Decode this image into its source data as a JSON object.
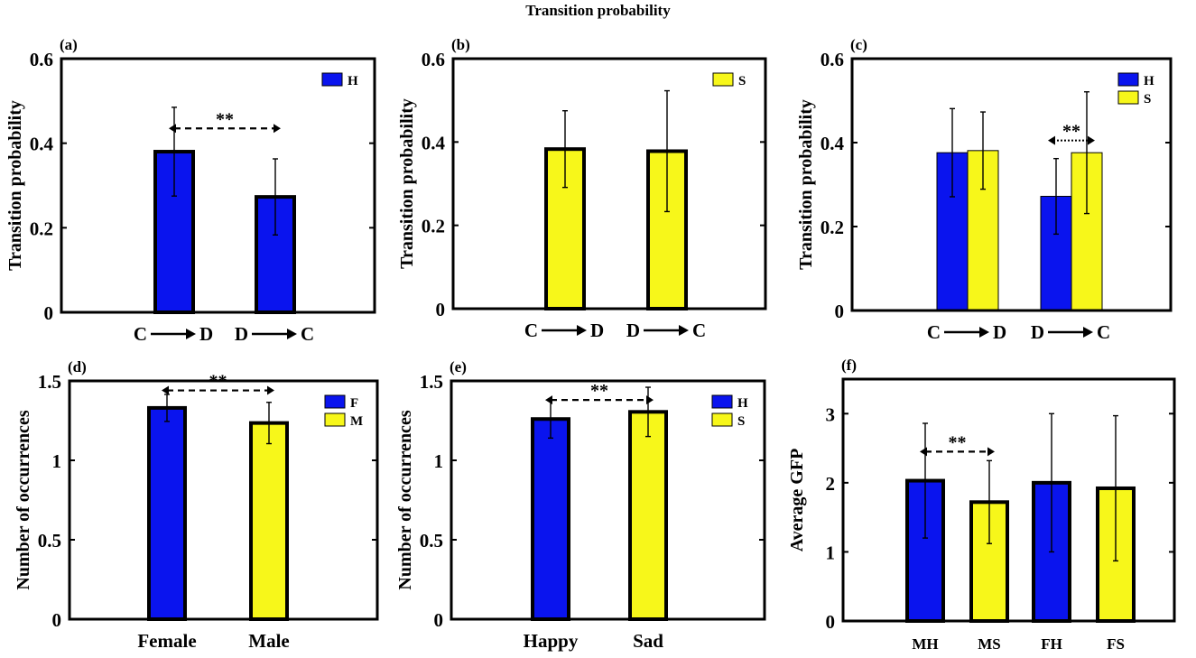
{
  "figure_title": "Transition probability",
  "colors": {
    "blue": "#0a14ee",
    "yellow": "#f7f71a",
    "frame": "#000000"
  },
  "chart_data": [
    {
      "id": "a",
      "panel_label": "(a)",
      "type": "bar",
      "categories": [
        {
          "from": "C",
          "to": "D"
        },
        {
          "from": "D",
          "to": "C"
        }
      ],
      "series": [
        {
          "name": "H",
          "color": "#0a14ee",
          "values": [
            0.38,
            0.273
          ],
          "errors": [
            0.105,
            0.09
          ]
        }
      ],
      "ylabel": "Transition probability",
      "ylim": [
        0,
        0.6
      ],
      "yticks": [
        0,
        0.2,
        0.4,
        0.6
      ],
      "ytick_labels": [
        "0",
        "0.2",
        "0.4",
        "0.6"
      ],
      "legend": [
        {
          "name": "H",
          "color": "#0a14ee"
        }
      ],
      "legend_position": "top-right",
      "significance": [
        {
          "text": "**",
          "from_category": 0,
          "to_category": 1,
          "level": 0.435
        }
      ]
    },
    {
      "id": "b",
      "panel_label": "(b)",
      "type": "bar",
      "categories": [
        {
          "from": "C",
          "to": "D"
        },
        {
          "from": "D",
          "to": "C"
        }
      ],
      "series": [
        {
          "name": "S",
          "color": "#f7f71a",
          "values": [
            0.383,
            0.378
          ],
          "errors": [
            0.092,
            0.145
          ]
        }
      ],
      "ylabel": "Transition probability",
      "ylim": [
        0,
        0.6
      ],
      "yticks": [
        0,
        0.2,
        0.4,
        0.6
      ],
      "ytick_labels": [
        "0",
        "0.2",
        "0.4",
        "0.6"
      ],
      "legend": [
        {
          "name": "S",
          "color": "#f7f71a"
        }
      ],
      "legend_position": "top-right",
      "significance": []
    },
    {
      "id": "c",
      "panel_label": "(c)",
      "type": "bar",
      "categories": [
        {
          "from": "C",
          "to": "D"
        },
        {
          "from": "D",
          "to": "C"
        }
      ],
      "series": [
        {
          "name": "H",
          "color": "#0a14ee",
          "values": [
            0.376,
            0.272
          ],
          "errors": [
            0.105,
            0.09
          ]
        },
        {
          "name": "S",
          "color": "#f7f71a",
          "values": [
            0.381,
            0.376
          ],
          "errors": [
            0.092,
            0.145
          ]
        }
      ],
      "ylabel": "Transition probability",
      "ylim": [
        0,
        0.6
      ],
      "yticks": [
        0,
        0.2,
        0.4,
        0.6
      ],
      "ytick_labels": [
        "0",
        "0.2",
        "0.4",
        "0.6"
      ],
      "legend": [
        {
          "name": "H",
          "color": "#0a14ee"
        },
        {
          "name": "S",
          "color": "#f7f71a"
        }
      ],
      "legend_position": "top-right",
      "significance": [
        {
          "text": "**",
          "category": 1,
          "dotted": true,
          "level": 0.405
        }
      ]
    },
    {
      "id": "d",
      "panel_label": "(d)",
      "type": "bar",
      "categories": [
        "Female",
        "Male"
      ],
      "series": [
        {
          "name": "Number of occurrences",
          "colors": [
            "#0a14ee",
            "#f7f71a"
          ],
          "values": [
            1.33,
            1.235
          ],
          "errors": [
            0.085,
            0.13
          ]
        }
      ],
      "ylabel": "Number of occurrences",
      "ylim": [
        0,
        1.5
      ],
      "yticks": [
        0,
        0.5,
        1,
        1.5
      ],
      "ytick_labels": [
        "0",
        "0.5",
        "1",
        "1.5"
      ],
      "legend": [
        {
          "name": "F",
          "color": "#0a14ee"
        },
        {
          "name": "M",
          "color": "#f7f71a"
        }
      ],
      "legend_position": "top-right",
      "significance": [
        {
          "text": "**",
          "from_category": 0,
          "to_category": 1,
          "level": 1.44
        }
      ]
    },
    {
      "id": "e",
      "panel_label": "(e)",
      "type": "bar",
      "categories": [
        "Happy",
        "Sad"
      ],
      "series": [
        {
          "name": "Number of occurrences",
          "colors": [
            "#0a14ee",
            "#f7f71a"
          ],
          "values": [
            1.26,
            1.305
          ],
          "errors": [
            0.12,
            0.155
          ]
        }
      ],
      "ylabel": "Number of occurrences",
      "ylim": [
        0,
        1.5
      ],
      "yticks": [
        0,
        0.5,
        1,
        1.5
      ],
      "ytick_labels": [
        "0",
        "0.5",
        "1",
        "1.5"
      ],
      "legend": [
        {
          "name": "H",
          "color": "#0a14ee"
        },
        {
          "name": "S",
          "color": "#f7f71a"
        }
      ],
      "legend_position": "top-right",
      "significance": [
        {
          "text": "**",
          "from_category": 0,
          "to_category": 1,
          "level": 1.38
        }
      ]
    },
    {
      "id": "f",
      "panel_label": "(f)",
      "type": "bar",
      "categories": [
        "MH",
        "MS",
        "FH",
        "FS"
      ],
      "series": [
        {
          "name": "Average GFP",
          "colors": [
            "#0a14ee",
            "#f7f71a",
            "#0a14ee",
            "#f7f71a"
          ],
          "values": [
            2.03,
            1.72,
            2.0,
            1.92
          ],
          "errors": [
            0.83,
            0.6,
            1.0,
            1.05
          ]
        }
      ],
      "ylabel": "Average GFP",
      "ylim": [
        0,
        3.5
      ],
      "yticks": [
        0,
        1,
        2,
        3
      ],
      "ytick_labels": [
        "0",
        "1",
        "2",
        "3"
      ],
      "legend": [],
      "legend_position": "none",
      "significance": [
        {
          "text": "**",
          "from_category": 0,
          "to_category": 1,
          "level": 2.45
        }
      ]
    }
  ]
}
